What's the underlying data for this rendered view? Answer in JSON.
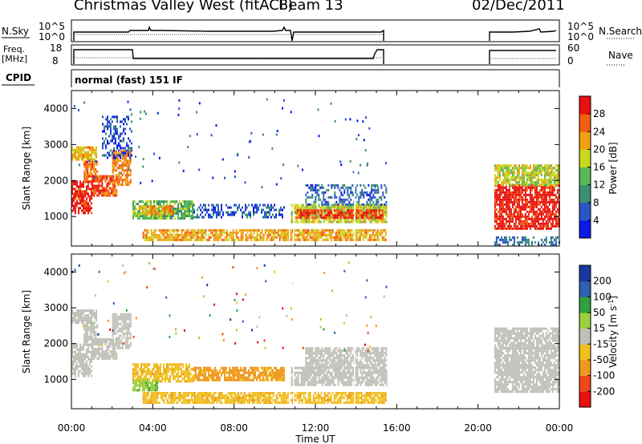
{
  "header": {
    "station": "Christmas Valley West (fitACF)",
    "beam": "Beam 13",
    "date": "02/Dec/2011"
  },
  "panels": {
    "nsky": {
      "label": "N.Sky",
      "ticks": [
        "10^5",
        "10^0"
      ]
    },
    "nsearch": {
      "label": "N.Search",
      "ticks": [
        "10^5",
        "10^0"
      ]
    },
    "freq": {
      "label_line1": "Freq.",
      "label_line2": "[MHz]",
      "ticks": [
        "18",
        "8"
      ]
    },
    "nave": {
      "label": "Nave",
      "ticks": [
        "60",
        "0"
      ]
    },
    "cpid": {
      "label": "CPID",
      "text": "normal (fast) 151 IF"
    }
  },
  "colors": {
    "power": [
      "#0a1ae6",
      "#2a55c8",
      "#3a9070",
      "#58b858",
      "#c8d820",
      "#f0a010",
      "#f06010",
      "#e81010"
    ],
    "velocity": [
      "#e81010",
      "#f04818",
      "#f09820",
      "#f0c020",
      "#c0c0b8",
      "#9ad040",
      "#30a040",
      "#3060b0",
      "#1838a0"
    ]
  },
  "chart_data": [
    {
      "type": "heatmap",
      "name": "power",
      "ylabel": "Slant Range [km]",
      "xlabel": "Time UT",
      "x_ticks": [
        "00:00",
        "04:00",
        "08:00",
        "12:00",
        "16:00",
        "20:00",
        "00:00"
      ],
      "y_ticks": [
        1000,
        2000,
        3000,
        4000
      ],
      "x_range_hours": [
        0,
        24
      ],
      "y_range_km": [
        180,
        4500
      ],
      "colorbar": {
        "label": "Power [dB]",
        "ticks": [
          4,
          8,
          12,
          16,
          20,
          24,
          28
        ],
        "range": [
          0,
          32
        ]
      },
      "regions": [
        {
          "t0": 0.0,
          "t1": 1.0,
          "r0": 1100,
          "r1": 2000,
          "level": 30
        },
        {
          "t0": 0.6,
          "t1": 1.3,
          "r0": 2000,
          "r1": 2550,
          "level": 25
        },
        {
          "t0": 0.0,
          "t1": 1.2,
          "r0": 2600,
          "r1": 2950,
          "level": 21
        },
        {
          "t0": 1.0,
          "t1": 2.2,
          "r0": 1600,
          "r1": 2150,
          "level": 27
        },
        {
          "t0": 2.0,
          "t1": 2.9,
          "r0": 1900,
          "r1": 2850,
          "level": 24
        },
        {
          "t0": 1.5,
          "t1": 3.0,
          "r0": 2600,
          "r1": 3800,
          "level": 6
        },
        {
          "t0": 3.0,
          "t1": 6.0,
          "r0": 950,
          "r1": 1450,
          "level": 14
        },
        {
          "t0": 3.3,
          "t1": 5.0,
          "r0": 1050,
          "r1": 1300,
          "level": 22
        },
        {
          "t0": 6.0,
          "t1": 10.5,
          "r0": 1000,
          "r1": 1350,
          "level": 6
        },
        {
          "t0": 3.5,
          "t1": 15.5,
          "r0": 320,
          "r1": 650,
          "level": 22
        },
        {
          "t0": 10.8,
          "t1": 15.5,
          "r0": 850,
          "r1": 1350,
          "level": 18
        },
        {
          "t0": 11.0,
          "t1": 15.3,
          "r0": 950,
          "r1": 1200,
          "level": 28
        },
        {
          "t0": 11.5,
          "t1": 15.5,
          "r0": 1300,
          "r1": 1900,
          "level": 7
        },
        {
          "t0": 20.8,
          "t1": 24.0,
          "r0": 650,
          "r1": 1900,
          "level": 30
        },
        {
          "t0": 20.8,
          "t1": 24.0,
          "r0": 1900,
          "r1": 2450,
          "level": 18
        },
        {
          "t0": 20.8,
          "t1": 24.0,
          "r0": 200,
          "r1": 450,
          "level": 8
        }
      ]
    },
    {
      "type": "heatmap",
      "name": "velocity",
      "ylabel": "Slant Range [km]",
      "xlabel": "Time UT",
      "x_ticks": [
        "00:00",
        "04:00",
        "08:00",
        "12:00",
        "16:00",
        "20:00",
        "00:00"
      ],
      "y_ticks": [
        1000,
        2000,
        3000,
        4000
      ],
      "x_range_hours": [
        0,
        24
      ],
      "y_range_km": [
        180,
        4500
      ],
      "colorbar": {
        "label": "Velocity [m s",
        "label_sup": "-1",
        "ticks": [
          -200,
          -100,
          -50,
          -15,
          15,
          50,
          100,
          200
        ]
      },
      "regions": [
        {
          "t0": 0.0,
          "t1": 1.0,
          "r0": 1100,
          "r1": 2000,
          "level": 0
        },
        {
          "t0": 0.6,
          "t1": 1.3,
          "r0": 2000,
          "r1": 2550,
          "level": 0
        },
        {
          "t0": 0.0,
          "t1": 1.2,
          "r0": 2600,
          "r1": 2950,
          "level": 0
        },
        {
          "t0": 1.0,
          "t1": 2.2,
          "r0": 1600,
          "r1": 2150,
          "level": 0
        },
        {
          "t0": 2.0,
          "t1": 2.9,
          "r0": 1900,
          "r1": 2850,
          "level": 0
        },
        {
          "t0": 3.0,
          "t1": 6.0,
          "r0": 950,
          "r1": 1450,
          "level": -40
        },
        {
          "t0": 3.0,
          "t1": 4.2,
          "r0": 700,
          "r1": 1000,
          "level": 40
        },
        {
          "t0": 6.0,
          "t1": 10.5,
          "r0": 1000,
          "r1": 1350,
          "level": -60
        },
        {
          "t0": 3.5,
          "t1": 15.5,
          "r0": 320,
          "r1": 650,
          "level": -40
        },
        {
          "t0": 10.8,
          "t1": 15.5,
          "r0": 850,
          "r1": 1350,
          "level": 0
        },
        {
          "t0": 11.5,
          "t1": 15.5,
          "r0": 1300,
          "r1": 1900,
          "level": 0
        },
        {
          "t0": 20.8,
          "t1": 24.0,
          "r0": 650,
          "r1": 1900,
          "level": 0
        },
        {
          "t0": 20.8,
          "t1": 24.0,
          "r0": 1900,
          "r1": 2450,
          "level": 0
        }
      ]
    }
  ]
}
